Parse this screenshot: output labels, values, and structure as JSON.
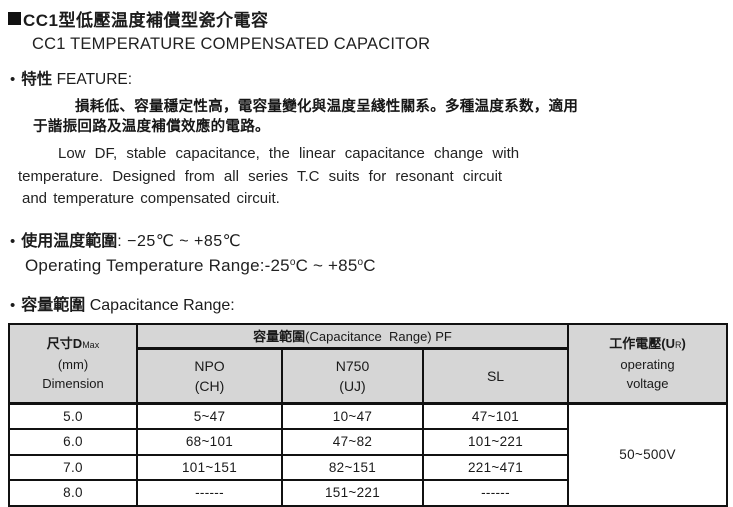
{
  "glyphs": {
    "bullet": "•"
  },
  "title": {
    "cn": "CC1型低壓温度補償型瓷介電容",
    "en": "CC1 TEMPERATURE COMPENSATED CAPACITOR"
  },
  "feature": {
    "heading_cn": "特性",
    "heading_en": " FEATURE:",
    "cn_line1": "損耗低、容量穩定性高，電容量變化與温度呈綫性關系。多種温度系数，適用",
    "cn_line2": "于諧振回路及温度補償效應的電路。",
    "en_line1": "Low DF, stable capacitance, the linear capacitance change with",
    "en_line2": "temperature. Designed from all series T.C suits for resonant circuit",
    "en_line3": "and temperature compensated circuit."
  },
  "temperature": {
    "label_cn": "使用温度範圍",
    "range_cn": ": −25℃ ~ +85℃",
    "label_en": "Operating Temperature Range:-25",
    "deg1": "o",
    "mid_en": "C ~ +85",
    "deg2": "o",
    "end_en": "C"
  },
  "capacitance": {
    "heading_cn": "容量範圍",
    "heading_en": " Capacitance Range:"
  },
  "table": {
    "header": {
      "dim_cn": "尺寸D",
      "dim_sub": "Max",
      "dim_unit": "(mm)",
      "dim_label": "Dimension",
      "cap_cn": "容量範圍",
      "cap_en": "(Capacitance  Range) PF",
      "npo_line1": "NPO",
      "npo_line2": "(CH)",
      "n750_line1": "N750",
      "n750_line2": "(UJ)",
      "sl": "SL",
      "volt_cn": "工作電壓(U",
      "volt_sub": "R",
      "volt_close": ")",
      "volt_en1": "operating",
      "volt_en2": "voltage"
    },
    "rows": [
      {
        "dim": "5.0",
        "npo": "5~47",
        "n750": "10~47",
        "sl": "47~101"
      },
      {
        "dim": "6.0",
        "npo": "68~101",
        "n750": "47~82",
        "sl": "101~221"
      },
      {
        "dim": "7.0",
        "npo": "101~151",
        "n750": "82~151",
        "sl": "221~471"
      },
      {
        "dim": "8.0",
        "npo": "------",
        "n750": "151~221",
        "sl": "------"
      }
    ],
    "voltage_value": "50~500V"
  }
}
